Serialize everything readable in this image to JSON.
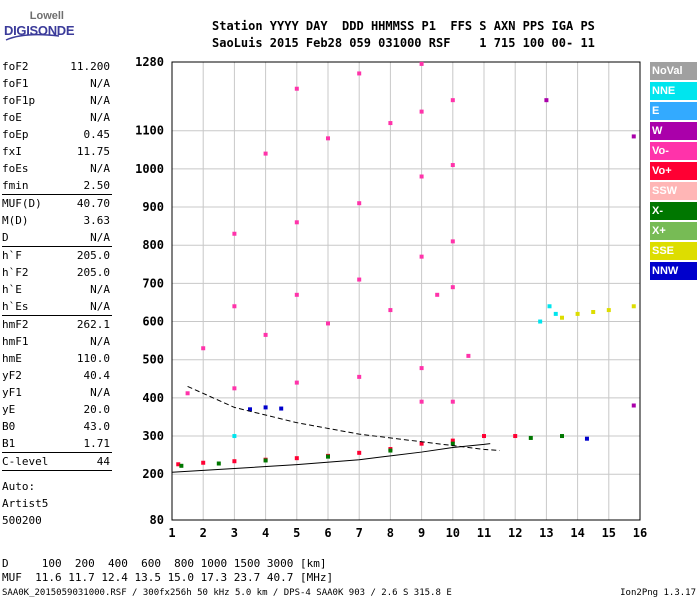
{
  "logo": {
    "line1": "Lowell",
    "line2": "DIGISONDE"
  },
  "header": {
    "line1": "Station YYYY DAY  DDD HHMMSS P1  FFS S AXN PPS IGA PS",
    "line2": "SaoLuis 2015 Feb28 059 031000 RSF    1 715 100 00- 11"
  },
  "params": [
    {
      "k": "foF2",
      "v": "11.200",
      "sep": false
    },
    {
      "k": "foF1",
      "v": "N/A",
      "sep": false
    },
    {
      "k": "foF1p",
      "v": "N/A",
      "sep": false
    },
    {
      "k": "foE",
      "v": "N/A",
      "sep": false
    },
    {
      "k": "foEp",
      "v": "0.45",
      "sep": false
    },
    {
      "k": "fxI",
      "v": "11.75",
      "sep": false
    },
    {
      "k": "foEs",
      "v": "N/A",
      "sep": false
    },
    {
      "k": "fmin",
      "v": "2.50",
      "sep": true
    },
    {
      "k": "MUF(D)",
      "v": "40.70",
      "sep": false
    },
    {
      "k": "M(D)",
      "v": "3.63",
      "sep": false
    },
    {
      "k": "D",
      "v": "N/A",
      "sep": true
    },
    {
      "k": "h`F",
      "v": "205.0",
      "sep": false
    },
    {
      "k": "h`F2",
      "v": "205.0",
      "sep": false
    },
    {
      "k": "h`E",
      "v": "N/A",
      "sep": false
    },
    {
      "k": "h`Es",
      "v": "N/A",
      "sep": true
    },
    {
      "k": "hmF2",
      "v": "262.1",
      "sep": false
    },
    {
      "k": "hmF1",
      "v": "N/A",
      "sep": false
    },
    {
      "k": "hmE",
      "v": "110.0",
      "sep": false
    },
    {
      "k": "yF2",
      "v": "40.4",
      "sep": false
    },
    {
      "k": "yF1",
      "v": "N/A",
      "sep": false
    },
    {
      "k": "yE",
      "v": "20.0",
      "sep": false
    },
    {
      "k": "B0",
      "v": "43.0",
      "sep": false
    },
    {
      "k": "B1",
      "v": "1.71",
      "sep": true
    },
    {
      "k": "C-level",
      "v": "44",
      "sep": true
    }
  ],
  "autoscale": [
    "Auto:",
    "Artist5",
    "500200"
  ],
  "legend": [
    {
      "label": "NoVal",
      "color": "#a0a0a0"
    },
    {
      "label": "NNE",
      "color": "#00e5ee"
    },
    {
      "label": "E",
      "color": "#33aaff"
    },
    {
      "label": "W",
      "color": "#aa00aa"
    },
    {
      "label": "Vo-",
      "color": "#ff33aa"
    },
    {
      "label": "Vo+",
      "color": "#ff0033"
    },
    {
      "label": "SSW",
      "color": "#ffb6b6"
    },
    {
      "label": "X-",
      "color": "#007700"
    },
    {
      "label": "X+",
      "color": "#77bb55"
    },
    {
      "label": "SSE",
      "color": "#dddd00"
    },
    {
      "label": "NNW",
      "color": "#0000cc"
    }
  ],
  "bottom": {
    "line1": "D     100  200  400  600  800 1000 1500 3000 [km]",
    "line2": "MUF  11.6 11.7 12.4 13.5 15.0 17.3 23.7 40.7 [MHz]"
  },
  "footer": {
    "left": "SAA0K_2015059031000.RSF / 300fx256h 50 kHz 5.0 km / DPS-4 SAA0K 903 / 2.6 S 315.8 E",
    "right": "Ion2Png 1.3.17"
  },
  "chart_data": {
    "type": "scatter",
    "title": "",
    "xlabel": "",
    "ylabel": "",
    "xlim": [
      1,
      16
    ],
    "ylim": [
      80,
      1280
    ],
    "x_ticks": [
      1,
      2,
      3,
      4,
      5,
      6,
      7,
      8,
      9,
      10,
      11,
      12,
      13,
      14,
      15,
      16
    ],
    "y_ticks": [
      80,
      200,
      300,
      400,
      500,
      600,
      700,
      800,
      900,
      1000,
      1100,
      1280
    ],
    "grid": true,
    "series": [
      {
        "name": "Vo+",
        "color": "#ff0033",
        "points": [
          [
            1.2,
            226
          ],
          [
            2,
            230
          ],
          [
            3,
            234
          ],
          [
            4,
            238
          ],
          [
            5,
            242
          ],
          [
            6,
            248
          ],
          [
            7,
            256
          ],
          [
            8,
            266
          ],
          [
            9,
            280
          ],
          [
            10,
            288
          ],
          [
            11,
            300
          ],
          [
            12,
            300
          ]
        ]
      },
      {
        "name": "X-",
        "color": "#007700",
        "points": [
          [
            1.3,
            222
          ],
          [
            2.5,
            228
          ],
          [
            4,
            236
          ],
          [
            6,
            246
          ],
          [
            8,
            262
          ],
          [
            10,
            280
          ],
          [
            12.5,
            295
          ],
          [
            13.5,
            300
          ]
        ]
      },
      {
        "name": "Vo-",
        "color": "#ff33aa",
        "points": [
          [
            1.5,
            412
          ],
          [
            3,
            425
          ],
          [
            5,
            440
          ],
          [
            7,
            455
          ],
          [
            9,
            478
          ],
          [
            10.5,
            510
          ],
          [
            2,
            530
          ],
          [
            4,
            565
          ],
          [
            6,
            595
          ],
          [
            8,
            630
          ],
          [
            9.5,
            670
          ],
          [
            10,
            690
          ],
          [
            3,
            640
          ],
          [
            5,
            670
          ],
          [
            7,
            710
          ],
          [
            9,
            770
          ],
          [
            10,
            810
          ],
          [
            3,
            830
          ],
          [
            5,
            860
          ],
          [
            7,
            910
          ],
          [
            9,
            980
          ],
          [
            10,
            1010
          ],
          [
            4,
            1040
          ],
          [
            6,
            1080
          ],
          [
            8,
            1120
          ],
          [
            9,
            1150
          ],
          [
            10,
            1180
          ],
          [
            5,
            1210
          ],
          [
            7,
            1250
          ],
          [
            9,
            1275
          ],
          [
            9,
            390
          ],
          [
            10,
            390
          ]
        ]
      },
      {
        "name": "NNW",
        "color": "#0000cc",
        "points": [
          [
            3.5,
            370
          ],
          [
            4,
            375
          ],
          [
            4.5,
            372
          ],
          [
            14.3,
            293
          ]
        ]
      },
      {
        "name": "SSE",
        "color": "#dddd00",
        "points": [
          [
            13.5,
            610
          ],
          [
            14,
            620
          ],
          [
            14.5,
            625
          ],
          [
            15,
            630
          ],
          [
            15.8,
            640
          ]
        ]
      },
      {
        "name": "NNE",
        "color": "#00e5ee",
        "points": [
          [
            13.1,
            640
          ],
          [
            13.3,
            620
          ],
          [
            12.8,
            600
          ],
          [
            3,
            300
          ]
        ]
      },
      {
        "name": "W",
        "color": "#aa00aa",
        "points": [
          [
            15.8,
            1085
          ],
          [
            15.8,
            380
          ],
          [
            13,
            1180
          ]
        ]
      }
    ],
    "fitted_profile": [
      [
        1.5,
        430
      ],
      [
        3,
        375
      ],
      [
        5,
        335
      ],
      [
        7,
        305
      ],
      [
        9,
        285
      ],
      [
        10,
        275
      ],
      [
        11,
        265
      ],
      [
        11.5,
        262
      ]
    ],
    "trace_fit": [
      [
        1,
        205
      ],
      [
        3,
        215
      ],
      [
        5,
        225
      ],
      [
        7,
        238
      ],
      [
        8,
        248
      ],
      [
        9,
        258
      ],
      [
        10,
        270
      ],
      [
        11,
        278
      ],
      [
        11.2,
        280
      ]
    ]
  }
}
